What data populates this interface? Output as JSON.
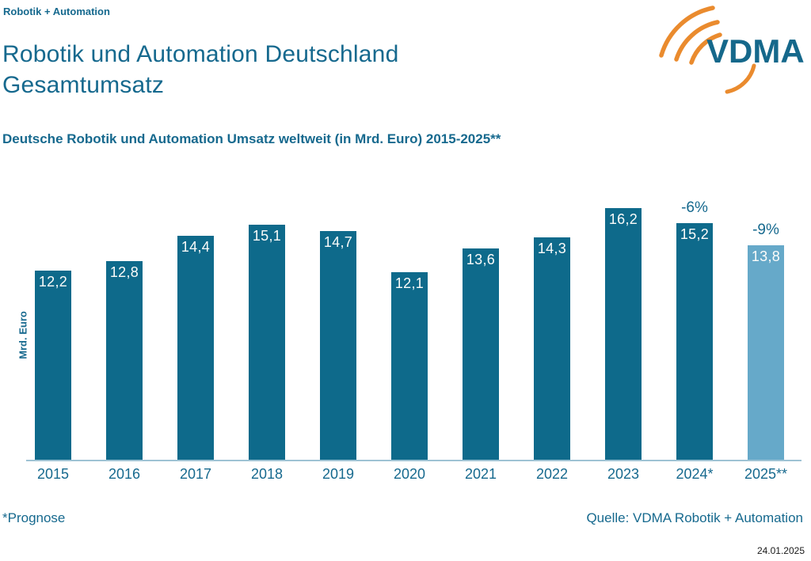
{
  "header": {
    "brand": "Robotik + Automation",
    "title_line1": "Robotik und Automation Deutschland",
    "title_line2": "Gesamtumsatz",
    "subtitle": "Deutsche Robotik und Automation Umsatz weltweit (in Mrd. Euro) 2015-2025**",
    "logo_text": "VDMA"
  },
  "chart_data": {
    "type": "bar",
    "title": "Deutsche Robotik und Automation Umsatz weltweit (in Mrd. Euro) 2015-2025**",
    "categories": [
      "2015",
      "2016",
      "2017",
      "2018",
      "2019",
      "2020",
      "2021",
      "2022",
      "2023",
      "2024*",
      "2025**"
    ],
    "values": [
      12.2,
      12.8,
      14.4,
      15.1,
      14.7,
      12.1,
      13.6,
      14.3,
      16.2,
      15.2,
      13.8
    ],
    "value_labels": [
      "12,2",
      "12,8",
      "14,4",
      "15,1",
      "14,7",
      "12,1",
      "13,6",
      "14,3",
      "16,2",
      "15,2",
      "13,8"
    ],
    "annotations": [
      "",
      "",
      "",
      "",
      "",
      "",
      "",
      "",
      "",
      "-6%",
      "-9%"
    ],
    "xlabel": "",
    "ylabel": "Mrd. Euro",
    "ylim": [
      0,
      17.7
    ],
    "grid": false,
    "legend": false,
    "bar_color": "#0e6a8b",
    "forecast_bar_color": "#66a9c9",
    "forecast_index": 10
  },
  "footer": {
    "footnote": "*Prognose",
    "source": "Quelle: VDMA Robotik + Automation",
    "date": "24.01.2025"
  },
  "colors": {
    "teal_text": "#16698e",
    "bar": "#0e6a8b",
    "forecast_bar": "#66a9c9",
    "axis_line": "#9ec3d4",
    "logo_orange": "#ea8b2e",
    "date_text": "#1a1a1a"
  }
}
